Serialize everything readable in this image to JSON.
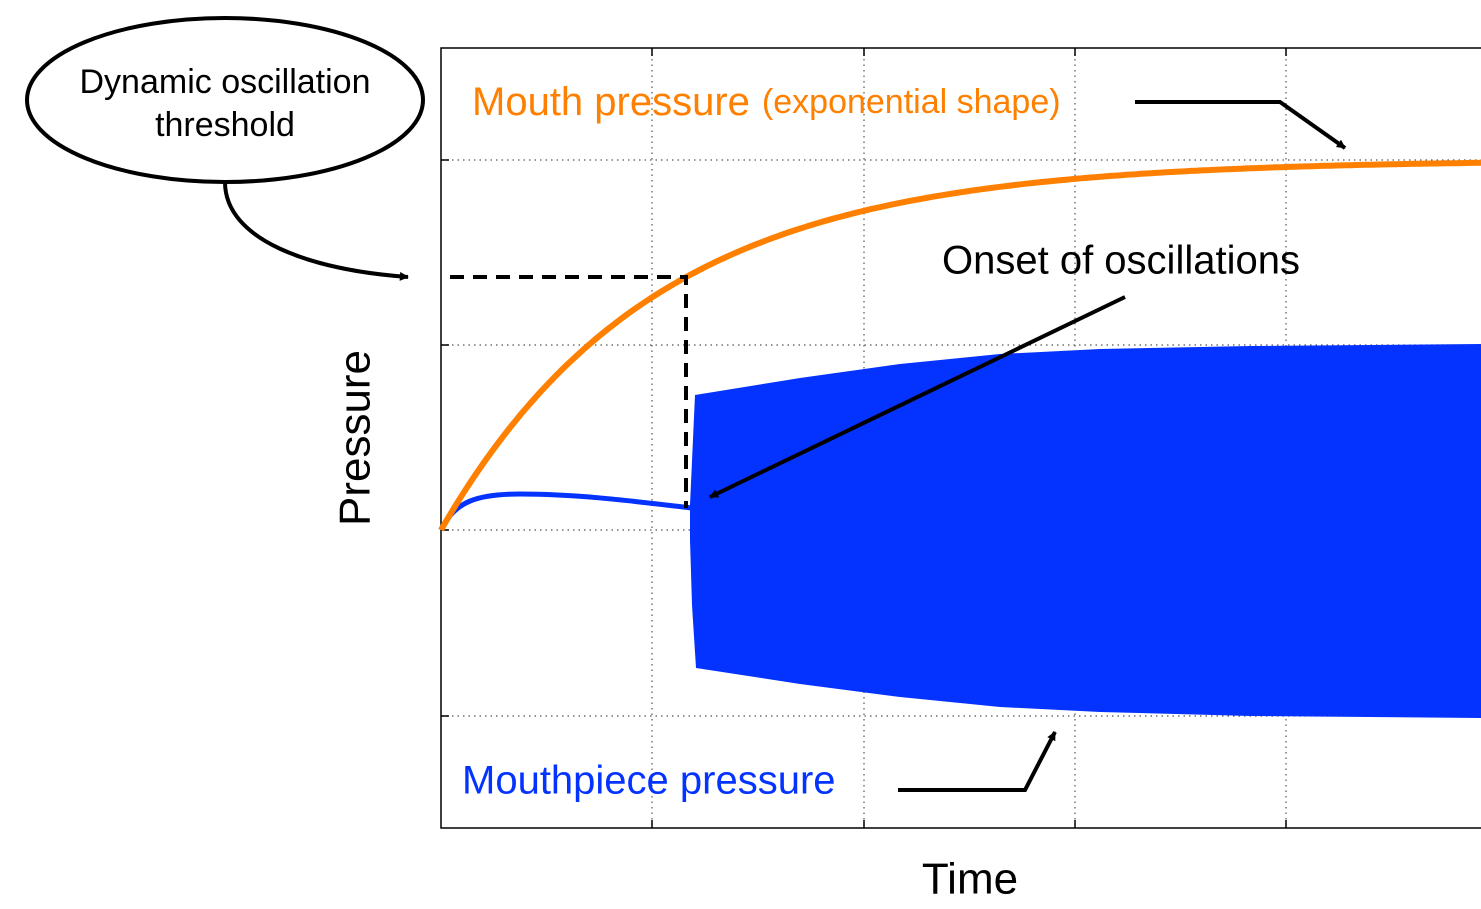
{
  "threshold_label": {
    "line1": "Dynamic oscillation",
    "line2": "threshold"
  },
  "mouth_label": {
    "name": "Mouth pressure",
    "note": "(exponential shape)"
  },
  "onset_label": "Onset of oscillations",
  "mouthpiece_label": "Mouthpiece pressure",
  "y_axis_label": "Pressure",
  "x_axis_label": "Time"
}
